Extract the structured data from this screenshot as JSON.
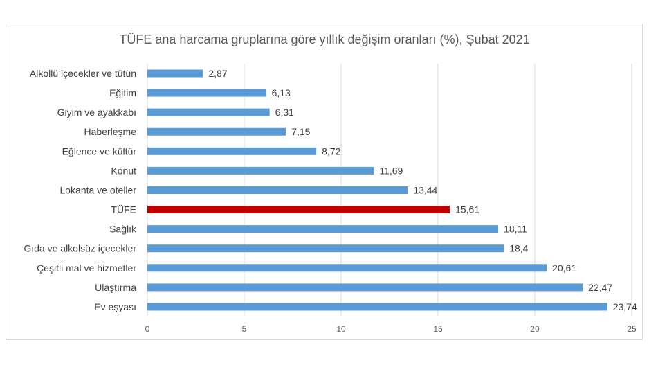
{
  "chart_data": {
    "type": "bar",
    "orientation": "horizontal",
    "title": "TÜFE ana harcama gruplarına göre yıllık değişim oranları (%), Şubat 2021",
    "categories": [
      "Alkollü içecekler ve tütün",
      "Eğitim",
      "Giyim ve ayakkabı",
      "Haberleşme",
      "Eğlence ve kültür",
      "Konut",
      "Lokanta ve oteller",
      "TÜFE",
      "Sağlık",
      "Gıda ve alkolsüz içecekler",
      "Çeşitli mal ve hizmetler",
      "Ulaştırma",
      "Ev eşyası"
    ],
    "values": [
      2.87,
      6.13,
      6.31,
      7.15,
      8.72,
      11.69,
      13.44,
      15.61,
      18.11,
      18.4,
      20.61,
      22.47,
      23.74
    ],
    "value_labels": [
      "2,87",
      "6,13",
      "6,31",
      "7,15",
      "8,72",
      "11,69",
      "13,44",
      "15,61",
      "18,11",
      "18,4",
      "20,61",
      "22,47",
      "23,74"
    ],
    "highlight_category": "TÜFE",
    "xlim": [
      0,
      25
    ],
    "xticks": [
      0,
      5,
      10,
      15,
      20,
      25
    ],
    "xtick_labels": [
      "0",
      "5",
      "10",
      "15",
      "20",
      "25"
    ],
    "xlabel": "",
    "ylabel": "",
    "grid": true,
    "legend": false,
    "colors": {
      "bar": "#5b9bd5",
      "highlight": "#c00000",
      "grid": "#d9d9d9",
      "text": "#404040",
      "title": "#595959"
    }
  }
}
